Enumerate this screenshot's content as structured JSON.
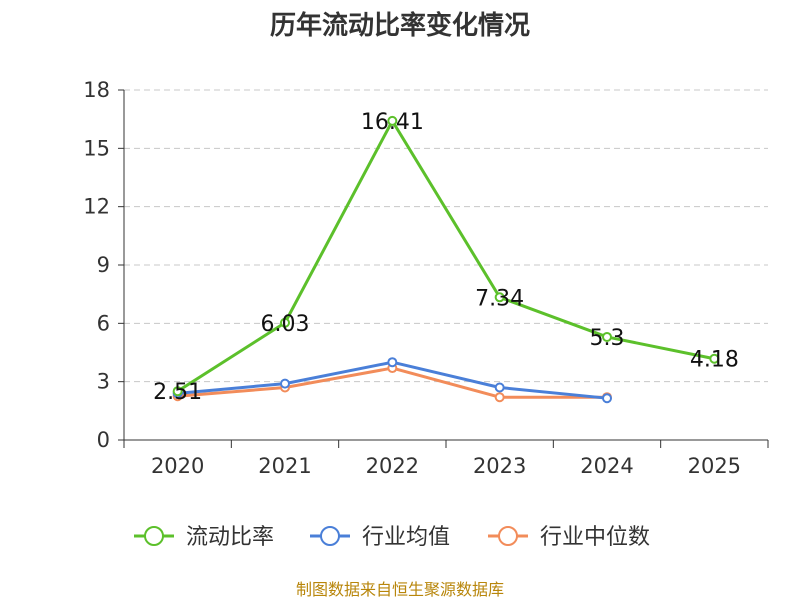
{
  "chart_data": {
    "type": "line",
    "title": "历年流动比率变化情况",
    "categories": [
      "2020",
      "2021",
      "2022",
      "2023",
      "2024",
      "2025"
    ],
    "ylim": [
      0,
      18
    ],
    "yticks": [
      0,
      3,
      6,
      9,
      12,
      15,
      18
    ],
    "grid": true,
    "legend_position": "bottom-center",
    "series": [
      {
        "name": "流动比率",
        "color": "#5cc02b",
        "values": [
          2.51,
          6.03,
          16.41,
          7.34,
          5.3,
          4.18
        ],
        "labels": [
          "2.51",
          "6.03",
          "16.41",
          "7.34",
          "5.3",
          "4.18"
        ]
      },
      {
        "name": "行业均值",
        "color": "#4a7fd8",
        "values": [
          2.4,
          2.9,
          4.0,
          2.7,
          2.15,
          null
        ]
      },
      {
        "name": "行业中位数",
        "color": "#f28c5a",
        "values": [
          2.25,
          2.7,
          3.7,
          2.2,
          2.2,
          null
        ]
      }
    ],
    "source": "制图数据来自恒生聚源数据库"
  }
}
